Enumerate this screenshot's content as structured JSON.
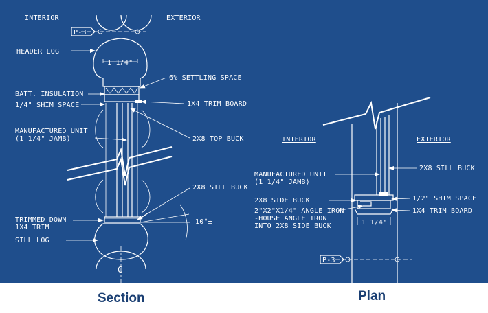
{
  "colors": {
    "background": "#ffffff",
    "blueprint": "#1f4e8c",
    "linework": "#ffffff",
    "title_text": "#1a3f73"
  },
  "section": {
    "title": "Section",
    "interior": "INTERIOR",
    "exterior": "EXTERIOR",
    "grid_tag": "P-3",
    "header_log": "HEADER LOG",
    "dim_114": "1 1/4\"",
    "settling": "6% SETTLING SPACE",
    "batt": "BATT. INSULATION",
    "shim": "1/4\" SHIM SPACE",
    "trim_board": "1X4 TRIM BOARD",
    "mfg_unit_1": "MANUFACTURED UNIT",
    "mfg_unit_2": "(1 1/4\" JAMB)",
    "top_buck": "2X8 TOP BUCK",
    "sill_buck": "2X8 SILL BUCK",
    "trimmed_1": "TRIMMED DOWN",
    "trimmed_2": "1X4 TRIM",
    "angle": "10°±",
    "sill_log": "SILL LOG",
    "centerline": "C"
  },
  "plan": {
    "title": "Plan",
    "interior": "INTERIOR",
    "exterior": "EXTERIOR",
    "grid_tag": "P-3",
    "mfg_unit_1": "MANUFACTURED UNIT",
    "mfg_unit_2": "(1 1/4\" JAMB)",
    "sill_buck": "2X8 SILL BUCK",
    "side_buck": "2X8 SIDE BUCK",
    "shim": "1/2\" SHIM SPACE",
    "angle_1": "2\"X2\"X1/4\" ANGLE IRON",
    "angle_2": "-HOUSE ANGLE IRON",
    "angle_3": "INTO 2X8 SIDE BUCK",
    "trim_board": "1X4 TRIM BOARD",
    "dim_114": "1 1/4\""
  }
}
